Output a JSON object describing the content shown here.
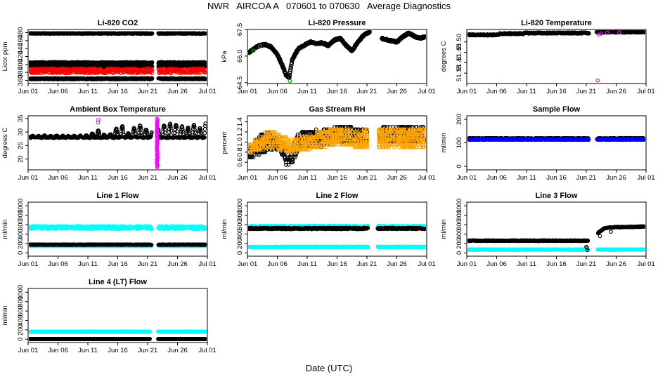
{
  "title": "NWR   AIRCOA A   070601 to 070630   Average Diagnostics",
  "xlabel": "Date (UTC)",
  "colors": {
    "black": "#000000",
    "red": "#ff0000",
    "green": "#00aa00",
    "magenta": "#ff00ff",
    "orange": "#ffa500",
    "blue": "#0000ff",
    "cyan": "#00ffff"
  },
  "chart_data": [
    {
      "type": "scatter",
      "title": "Li-820 CO2",
      "ylabel": "Licor ppm",
      "ylim": [
        352,
        488
      ],
      "yticks": [
        "360",
        "380",
        "400",
        "420",
        "440",
        "460",
        "480"
      ],
      "xlim": [
        0.5,
        30.5
      ],
      "xticks": [
        "Jun 01",
        "Jun 06",
        "Jun 11",
        "Jun 16",
        "Jun 21",
        "Jun 26",
        "Jul 01"
      ],
      "gap": [
        21.3,
        22.3
      ],
      "series": [
        {
          "name": "high",
          "color": "black",
          "pattern": "flat",
          "base": 478,
          "amp": 0.8
        },
        {
          "name": "mid",
          "color": "black",
          "pattern": "flat",
          "base": 404,
          "amp": 2
        },
        {
          "name": "mid2",
          "color": "black",
          "pattern": "flat",
          "base": 396,
          "amp": 2
        },
        {
          "name": "sample",
          "color": "red",
          "pattern": "flat",
          "base": 384,
          "amp": 6
        },
        {
          "name": "low",
          "color": "black",
          "pattern": "flat",
          "base": 364,
          "amp": 1.5
        }
      ]
    },
    {
      "type": "line",
      "title": "Li-820 Pressure",
      "ylabel": "kPa",
      "ylim": [
        64.45,
        67.5
      ],
      "yticks": [
        "64.5",
        "66.0",
        "67.5"
      ],
      "xlim": [
        0.5,
        30.5
      ],
      "xticks": [
        "Jun 01",
        "Jun 06",
        "Jun 11",
        "Jun 16",
        "Jun 21",
        "Jun 26",
        "Jul 01"
      ],
      "gap": [
        21.0,
        23.0
      ],
      "series": [
        {
          "name": "pressure",
          "color": "black",
          "pattern": "curve",
          "x": [
            0.8,
            1.5,
            2.5,
            3.5,
            4.5,
            5.5,
            6.3,
            7.0,
            7.5,
            8.0,
            9.0,
            10.0,
            11.0,
            12.0,
            13.0,
            14.0,
            15.0,
            16.0,
            17.0,
            18.0,
            19.0,
            20.0,
            21.0,
            23.0,
            24.0,
            25.5,
            26.5,
            27.5,
            28.5,
            29.5,
            30.2
          ],
          "values": [
            66.2,
            66.4,
            66.6,
            66.65,
            66.5,
            66.1,
            65.5,
            64.9,
            64.8,
            65.8,
            66.4,
            66.6,
            66.8,
            66.7,
            66.75,
            66.6,
            66.9,
            67.0,
            66.6,
            66.3,
            66.8,
            67.2,
            67.35,
            67.0,
            66.9,
            66.8,
            67.1,
            67.3,
            67.1,
            67.0,
            67.1
          ]
        }
      ]
    },
    {
      "type": "scatter",
      "title": "Li-820 Temperature",
      "ylabel": "degrees C",
      "ylim": [
        51.3,
        51.56
      ],
      "yticks": [
        "51.35",
        "51.40",
        "51.45",
        "51.50"
      ],
      "xlim": [
        0.5,
        30.5
      ],
      "xticks": [
        "Jun 01",
        "Jun 06",
        "Jun 11",
        "Jun 16",
        "Jun 21",
        "Jun 26",
        "Jul 01"
      ],
      "gap": [
        21.0,
        22.2
      ],
      "series": [
        {
          "name": "temp",
          "color": "black",
          "pattern": "steps",
          "x": [
            1,
            6,
            6.01,
            10,
            10.01,
            21,
            22.2,
            30.2
          ],
          "values": [
            51.534,
            51.534,
            51.54,
            51.54,
            51.543,
            51.543,
            51.547,
            51.548
          ],
          "amp": 0.003
        },
        {
          "name": "flag",
          "color": "magenta",
          "pattern": "points",
          "x": [
            22.4,
            22.6,
            23,
            24,
            26
          ],
          "values": [
            51.315,
            51.535,
            51.54,
            51.545,
            51.546
          ]
        }
      ]
    },
    {
      "type": "scatter",
      "title": "Ambient Box Temperature",
      "ylabel": "degrees C",
      "ylim": [
        16,
        36
      ],
      "yticks": [
        "20",
        "25",
        "30",
        "35"
      ],
      "xlim": [
        0.5,
        30.5
      ],
      "xticks": [
        "Jun 01",
        "Jun 06",
        "Jun 11",
        "Jun 16",
        "Jun 21",
        "Jun 26",
        "Jul 01"
      ],
      "gap": [
        21.2,
        22.1
      ],
      "series": [
        {
          "name": "temp",
          "color": "black",
          "pattern": "diurnal",
          "base": 28,
          "amp_by_day": [
            0.5,
            0.5,
            0.6,
            0.5,
            0.6,
            0.5,
            0.6,
            0.5,
            0.6,
            0.7,
            1.5,
            2.5,
            1.0,
            1.2,
            3.2,
            4.2,
            1.5,
            3.5,
            4.5,
            3.0,
            2.0,
            3.0,
            4.5,
            5.0,
            4.8,
            4.0,
            3.5,
            4.5,
            3.5,
            5.5
          ]
        },
        {
          "name": "flag",
          "color": "magenta",
          "pattern": "vline",
          "x": 22.1,
          "values": [
            17,
            35
          ]
        },
        {
          "name": "flag2",
          "color": "magenta",
          "pattern": "points",
          "x": [
            12.2,
            12.25
          ],
          "values": [
            33.5,
            34.5
          ]
        }
      ]
    },
    {
      "type": "scatter",
      "title": "Gas Stream RH",
      "ylabel": "percent",
      "ylim": [
        0.45,
        1.52
      ],
      "yticks": [
        "0.6",
        "0.8",
        "1.0",
        "1.2",
        "1.4"
      ],
      "xlim": [
        0.5,
        30.5
      ],
      "xticks": [
        "Jun 01",
        "Jun 06",
        "Jun 11",
        "Jun 16",
        "Jun 21",
        "Jun 26",
        "Jul 01"
      ],
      "gap": [
        20.6,
        22.4
      ],
      "series": [
        {
          "name": "rh",
          "color": "black",
          "pattern": "quantized",
          "step": 0.05,
          "x": [
            1,
            2,
            4,
            6,
            7,
            8,
            9,
            10,
            12,
            14,
            16,
            18,
            20,
            22.4,
            24,
            26,
            28,
            30
          ],
          "lo": [
            0.7,
            0.75,
            0.85,
            0.85,
            0.55,
            0.6,
            0.85,
            0.9,
            0.9,
            0.95,
            1.0,
            1.0,
            1.0,
            0.95,
            1.0,
            1.0,
            1.0,
            1.0
          ],
          "hi": [
            0.9,
            1.1,
            1.2,
            1.1,
            0.9,
            0.9,
            1.15,
            1.2,
            1.25,
            1.25,
            1.3,
            1.3,
            1.25,
            1.3,
            1.3,
            1.3,
            1.3,
            1.3
          ]
        },
        {
          "name": "rh-ref",
          "color": "orange",
          "pattern": "quantized",
          "step": 0.05,
          "x": [
            1,
            4,
            8,
            12,
            16,
            20,
            22.4,
            26,
            30
          ],
          "lo": [
            0.8,
            0.9,
            0.8,
            0.9,
            0.95,
            0.9,
            0.9,
            0.9,
            0.9
          ],
          "hi": [
            0.95,
            1.25,
            1.05,
            1.2,
            1.25,
            1.25,
            1.25,
            1.25,
            1.25
          ]
        }
      ]
    },
    {
      "type": "scatter",
      "title": "Sample Flow",
      "ylabel": "ml/min",
      "ylim": [
        -15,
        215
      ],
      "yticks": [
        "0",
        "100",
        "200"
      ],
      "xlim": [
        0.5,
        30.5
      ],
      "xticks": [
        "Jun 01",
        "Jun 06",
        "Jun 11",
        "Jun 16",
        "Jun 21",
        "Jun 26",
        "Jul 01"
      ],
      "gap": [
        20.9,
        22.3
      ],
      "series": [
        {
          "name": "flow",
          "color": "black",
          "pattern": "flat",
          "base": 118,
          "amp": 2.5
        },
        {
          "name": "flow-b",
          "color": "blue",
          "pattern": "flat",
          "base": 114,
          "amp": 1.5
        }
      ]
    },
    {
      "type": "scatter",
      "title": "Line 1 Flow",
      "ylabel": "ml/min",
      "ylim": [
        -70,
        1080
      ],
      "yticks": [
        "0",
        "200",
        "400",
        "600",
        "800",
        "1000"
      ],
      "xlim": [
        0.5,
        30.5
      ],
      "xticks": [
        "Jun 01",
        "Jun 06",
        "Jun 11",
        "Jun 16",
        "Jun 21",
        "Jun 26",
        "Jul 01"
      ],
      "gap": [
        21.2,
        22.3
      ],
      "series": [
        {
          "name": "sample",
          "color": "cyan",
          "pattern": "flat",
          "base": 540,
          "amp": 30
        },
        {
          "name": "low-c",
          "color": "cyan",
          "pattern": "flat",
          "base": 150,
          "amp": 6
        },
        {
          "name": "low",
          "color": "black",
          "pattern": "flat",
          "base": 175,
          "amp": 6
        }
      ]
    },
    {
      "type": "scatter",
      "title": "Line 2 Flow",
      "ylabel": "ml/min",
      "ylim": [
        -70,
        1080
      ],
      "yticks": [
        "0",
        "200",
        "400",
        "600",
        "800",
        "1000"
      ],
      "xlim": [
        0.5,
        30.5
      ],
      "xticks": [
        "Jun 01",
        "Jun 06",
        "Jun 11",
        "Jun 16",
        "Jun 21",
        "Jun 26",
        "Jul 01"
      ],
      "gap": [
        20.7,
        22.3
      ],
      "series": [
        {
          "name": "sample-c",
          "color": "cyan",
          "pattern": "flat",
          "base": 555,
          "amp": 25
        },
        {
          "name": "sample",
          "color": "black",
          "pattern": "flat",
          "base": 520,
          "amp": 15
        },
        {
          "name": "low",
          "color": "cyan",
          "pattern": "flat",
          "base": 125,
          "amp": 8
        }
      ]
    },
    {
      "type": "scatter",
      "title": "Line 3 Flow",
      "ylabel": "ml/min",
      "ylim": [
        -70,
        1080
      ],
      "yticks": [
        "0",
        "200",
        "400",
        "600",
        "800",
        "1000"
      ],
      "xlim": [
        0.5,
        30.5
      ],
      "xticks": [
        "Jun 01",
        "Jun 06",
        "Jun 11",
        "Jun 16",
        "Jun 21",
        "Jun 26",
        "Jul 01"
      ],
      "gap": [
        20.8,
        22.4
      ],
      "series": [
        {
          "name": "first",
          "color": "black",
          "pattern": "steps",
          "x": [
            1,
            20.8,
            22.4,
            23.5,
            24.5,
            30.2
          ],
          "values": [
            260,
            260,
            420,
            520,
            545,
            560
          ],
          "amp": 8
        },
        {
          "name": "first-c",
          "color": "cyan",
          "pattern": "flat",
          "base": 70,
          "amp": 6
        },
        {
          "name": "drop",
          "color": "black",
          "pattern": "points",
          "x": [
            20.5,
            20.6,
            20.7,
            22.8,
            24.6
          ],
          "values": [
            130,
            100,
            60,
            360,
            450
          ]
        }
      ]
    },
    {
      "type": "scatter",
      "title": "Line 4 (LT) Flow",
      "ylabel": "ml/min",
      "ylim": [
        -70,
        1080
      ],
      "yticks": [
        "0",
        "200",
        "400",
        "600",
        "800",
        "1000"
      ],
      "xlim": [
        0.5,
        30.5
      ],
      "xticks": [
        "Jun 01",
        "Jun 06",
        "Jun 11",
        "Jun 16",
        "Jun 21",
        "Jun 26",
        "Jul 01"
      ],
      "gap": [
        20.9,
        22.2
      ],
      "series": [
        {
          "name": "high",
          "color": "cyan",
          "pattern": "flat",
          "base": 160,
          "amp": 6
        },
        {
          "name": "zero",
          "color": "black",
          "pattern": "flat",
          "base": 5,
          "amp": 3
        }
      ]
    }
  ]
}
